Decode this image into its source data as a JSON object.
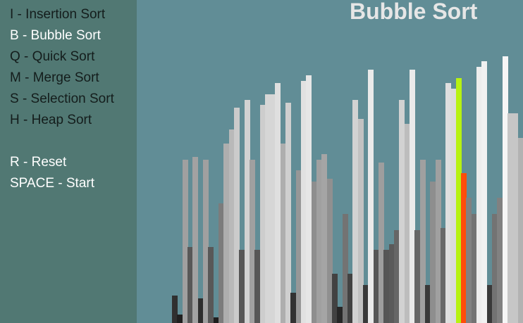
{
  "sidebar": {
    "menu": [
      {
        "label": "I - Insertion Sort",
        "name": "menu-insertion-sort",
        "active": false
      },
      {
        "label": "B - Bubble Sort",
        "name": "menu-bubble-sort",
        "active": true
      },
      {
        "label": "Q - Quick Sort",
        "name": "menu-quick-sort",
        "active": false
      },
      {
        "label": "M - Merge Sort",
        "name": "menu-merge-sort",
        "active": false
      },
      {
        "label": "S - Selection Sort",
        "name": "menu-selection-sort",
        "active": false
      },
      {
        "label": "H - Heap Sort",
        "name": "menu-heap-sort",
        "active": false
      }
    ],
    "controls": [
      {
        "label": "R - Reset",
        "name": "menu-reset",
        "active": true
      },
      {
        "label": "SPACE - Start",
        "name": "menu-start",
        "active": true
      }
    ]
  },
  "title": "Bubble Sort",
  "colors": {
    "background": "#618d96",
    "sidebar": "#517873",
    "text_active": "#ffffff",
    "text_inactive": "#141d1c",
    "title": "#e6e6e6",
    "highlight_compare": "#b7f211",
    "highlight_swap": "#ff4d0a"
  },
  "bars": {
    "max_value": 100,
    "values": [
      10,
      3,
      60,
      28,
      61,
      9,
      60,
      28,
      2,
      44,
      66,
      71,
      79,
      27,
      82,
      60,
      27,
      80,
      84,
      84,
      88,
      66,
      81,
      11,
      56,
      89,
      91,
      52,
      60,
      62,
      53,
      18,
      6,
      40,
      18,
      82,
      75,
      14,
      93,
      27,
      59,
      27,
      29,
      34,
      82,
      73,
      93,
      34,
      60,
      14,
      52,
      60,
      35,
      88,
      86,
      90,
      55,
      46,
      40,
      94,
      96,
      14,
      40,
      46,
      98,
      77,
      77,
      68
    ],
    "highlight_compare_index": 55,
    "highlight_swap_index": 56
  }
}
